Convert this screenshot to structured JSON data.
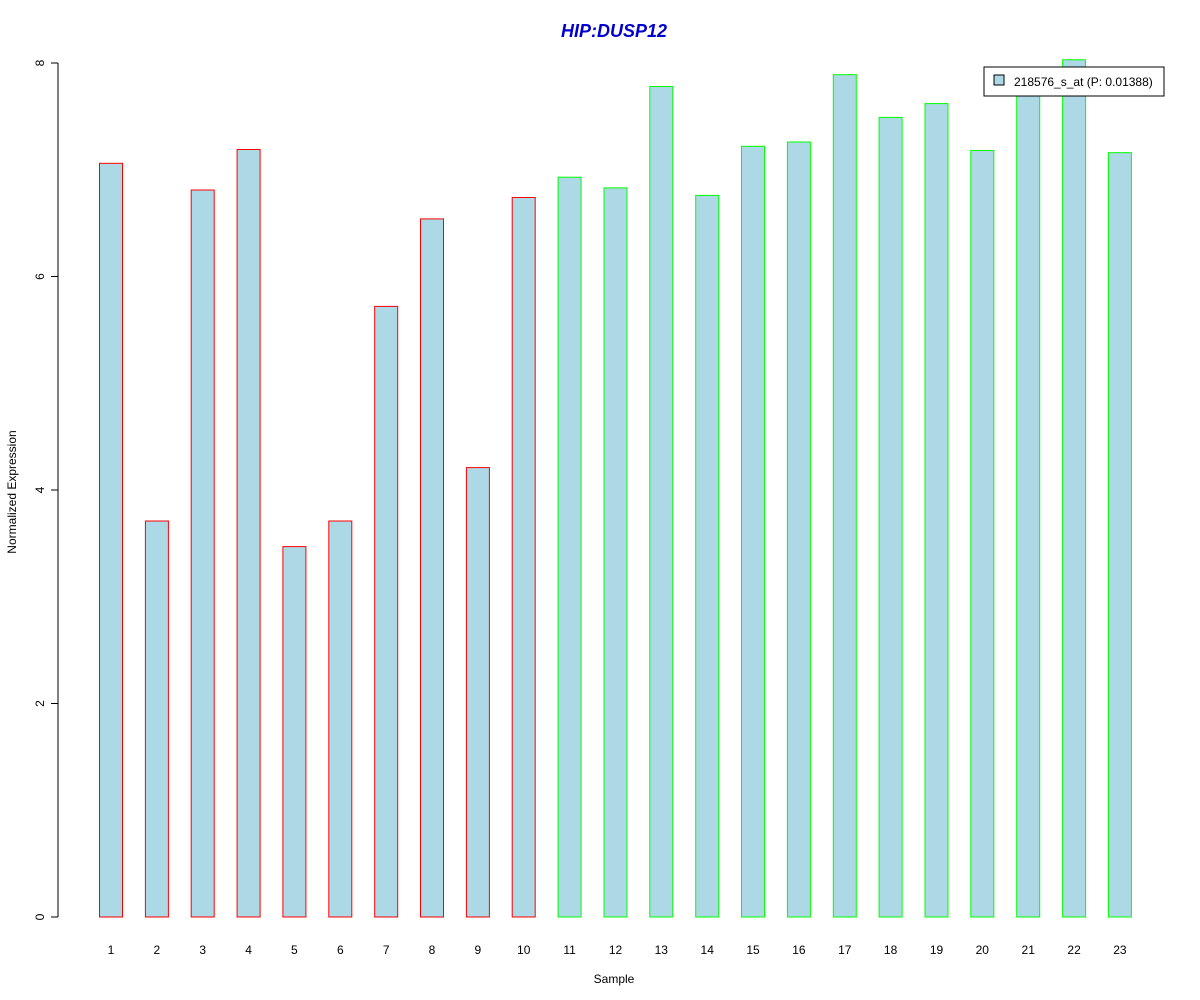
{
  "chart_data": {
    "type": "bar",
    "title": "HIP:DUSP12",
    "xlabel": "Sample",
    "ylabel": "Normalized Expression",
    "ylim": [
      0,
      8
    ],
    "yticks": [
      "0",
      "2",
      "4",
      "6",
      "8"
    ],
    "categories": [
      "1",
      "2",
      "3",
      "4",
      "5",
      "6",
      "7",
      "8",
      "9",
      "10",
      "11",
      "12",
      "13",
      "14",
      "15",
      "16",
      "17",
      "18",
      "19",
      "20",
      "21",
      "22",
      "23"
    ],
    "values": [
      7.06,
      3.71,
      6.81,
      7.19,
      3.47,
      3.71,
      5.72,
      6.54,
      4.21,
      6.74,
      6.93,
      6.83,
      7.78,
      6.76,
      7.22,
      7.26,
      7.89,
      7.49,
      7.62,
      7.18,
      7.75,
      8.03,
      7.16
    ],
    "groups": [
      "red",
      "red",
      "red",
      "red",
      "red",
      "red",
      "red",
      "red",
      "red",
      "red",
      "green",
      "green",
      "green",
      "green",
      "green",
      "green",
      "green",
      "green",
      "green",
      "green",
      "green",
      "green",
      "green"
    ],
    "legend": {
      "label": "218576_s_at (P: 0.01388)",
      "position": "top-right"
    },
    "grid": false,
    "colors": {
      "bar_fill": "#add8e6",
      "red": "#ff0000",
      "green": "#00ff00",
      "title": "#0000cd",
      "axis": "#000000"
    }
  }
}
